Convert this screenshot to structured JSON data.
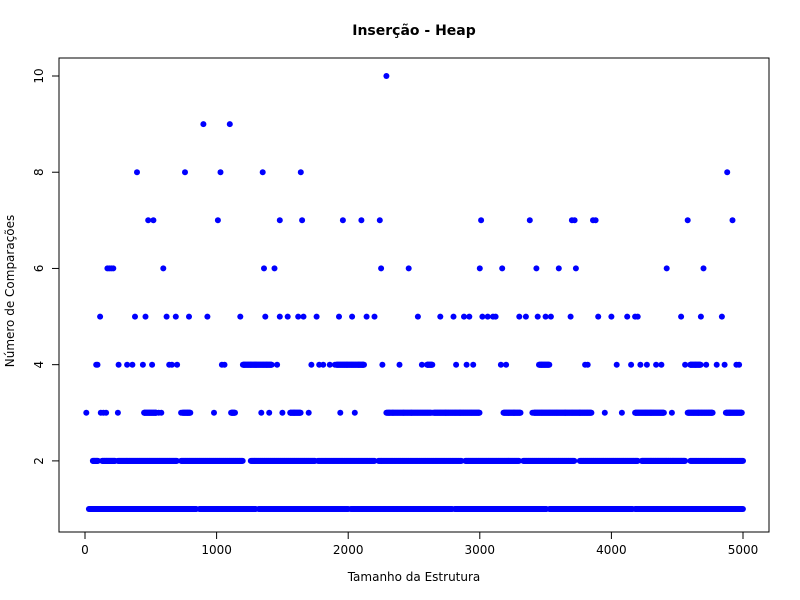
{
  "chart_data": {
    "type": "scatter",
    "title": "Inserção - Heap",
    "xlabel": "Tamanho da Estrutura",
    "ylabel": "Número de Comparações",
    "xlim": [
      0,
      5000
    ],
    "ylim": [
      1,
      10
    ],
    "xticks": [
      0,
      1000,
      2000,
      3000,
      4000,
      5000
    ],
    "yticks": [
      2,
      4,
      6,
      8,
      10
    ],
    "grid": false,
    "point_color": "#0000ff",
    "points": [
      [
        10,
        3
      ],
      [
        60,
        2
      ],
      [
        85,
        4
      ],
      [
        95,
        4
      ],
      [
        115,
        5
      ],
      [
        120,
        3
      ],
      [
        140,
        3
      ],
      [
        160,
        3
      ],
      [
        170,
        6
      ],
      [
        185,
        6
      ],
      [
        200,
        6
      ],
      [
        215,
        6
      ],
      [
        250,
        3
      ],
      [
        255,
        4
      ],
      [
        320,
        4
      ],
      [
        360,
        4
      ],
      [
        380,
        5
      ],
      [
        395,
        8
      ],
      [
        440,
        4
      ],
      [
        450,
        3
      ],
      [
        460,
        5
      ],
      [
        480,
        7
      ],
      [
        520,
        7
      ],
      [
        510,
        4
      ],
      [
        540,
        3
      ],
      [
        560,
        3
      ],
      [
        580,
        3
      ],
      [
        595,
        6
      ],
      [
        620,
        5
      ],
      [
        640,
        4
      ],
      [
        660,
        4
      ],
      [
        690,
        5
      ],
      [
        700,
        4
      ],
      [
        730,
        3
      ],
      [
        760,
        8
      ],
      [
        780,
        3
      ],
      [
        790,
        5
      ],
      [
        900,
        9
      ],
      [
        930,
        5
      ],
      [
        980,
        3
      ],
      [
        1010,
        7
      ],
      [
        1030,
        8
      ],
      [
        1040,
        4
      ],
      [
        1060,
        4
      ],
      [
        1100,
        9
      ],
      [
        1120,
        3
      ],
      [
        1180,
        5
      ],
      [
        1210,
        4
      ],
      [
        1260,
        4
      ],
      [
        1300,
        4
      ],
      [
        1340,
        3
      ],
      [
        1350,
        8
      ],
      [
        1360,
        6
      ],
      [
        1370,
        5
      ],
      [
        1380,
        4
      ],
      [
        1400,
        3
      ],
      [
        1440,
        6
      ],
      [
        1460,
        4
      ],
      [
        1480,
        5
      ],
      [
        1480,
        7
      ],
      [
        1500,
        3
      ],
      [
        1540,
        5
      ],
      [
        1560,
        3
      ],
      [
        1590,
        3
      ],
      [
        1620,
        5
      ],
      [
        1640,
        8
      ],
      [
        1650,
        7
      ],
      [
        1660,
        5
      ],
      [
        1700,
        3
      ],
      [
        1720,
        4
      ],
      [
        1760,
        5
      ],
      [
        1780,
        4
      ],
      [
        1810,
        4
      ],
      [
        1860,
        4
      ],
      [
        1900,
        4
      ],
      [
        1930,
        5
      ],
      [
        1940,
        3
      ],
      [
        1960,
        7
      ],
      [
        1990,
        4
      ],
      [
        2030,
        5
      ],
      [
        2050,
        3
      ],
      [
        2080,
        4
      ],
      [
        2100,
        7
      ],
      [
        2110,
        4
      ],
      [
        2140,
        5
      ],
      [
        2200,
        5
      ],
      [
        2240,
        7
      ],
      [
        2250,
        6
      ],
      [
        2260,
        4
      ],
      [
        2290,
        10
      ],
      [
        2310,
        3
      ],
      [
        2340,
        3
      ],
      [
        2390,
        4
      ],
      [
        2420,
        3
      ],
      [
        2460,
        6
      ],
      [
        2480,
        3
      ],
      [
        2530,
        5
      ],
      [
        2560,
        4
      ],
      [
        2600,
        4
      ],
      [
        2640,
        3
      ],
      [
        2700,
        5
      ],
      [
        2740,
        3
      ],
      [
        2800,
        5
      ],
      [
        2820,
        4
      ],
      [
        2850,
        3
      ],
      [
        2880,
        5
      ],
      [
        2900,
        4
      ],
      [
        2920,
        5
      ],
      [
        2950,
        4
      ],
      [
        3000,
        6
      ],
      [
        3010,
        7
      ],
      [
        3020,
        5
      ],
      [
        3060,
        5
      ],
      [
        3100,
        5
      ],
      [
        3120,
        5
      ],
      [
        3160,
        4
      ],
      [
        3170,
        6
      ],
      [
        3200,
        4
      ],
      [
        3260,
        3
      ],
      [
        3300,
        5
      ],
      [
        3350,
        5
      ],
      [
        3380,
        7
      ],
      [
        3400,
        3
      ],
      [
        3430,
        6
      ],
      [
        3440,
        5
      ],
      [
        3470,
        4
      ],
      [
        3500,
        5
      ],
      [
        3540,
        5
      ],
      [
        3600,
        6
      ],
      [
        3650,
        3
      ],
      [
        3690,
        5
      ],
      [
        3700,
        7
      ],
      [
        3720,
        7
      ],
      [
        3730,
        6
      ],
      [
        3760,
        3
      ],
      [
        3800,
        4
      ],
      [
        3820,
        4
      ],
      [
        3860,
        7
      ],
      [
        3880,
        7
      ],
      [
        3900,
        5
      ],
      [
        3950,
        3
      ],
      [
        4000,
        5
      ],
      [
        4040,
        4
      ],
      [
        4080,
        3
      ],
      [
        4120,
        5
      ],
      [
        4150,
        4
      ],
      [
        4180,
        5
      ],
      [
        4200,
        5
      ],
      [
        4220,
        4
      ],
      [
        4270,
        4
      ],
      [
        4300,
        3
      ],
      [
        4340,
        4
      ],
      [
        4380,
        4
      ],
      [
        4420,
        6
      ],
      [
        4460,
        3
      ],
      [
        4530,
        5
      ],
      [
        4560,
        4
      ],
      [
        4580,
        7
      ],
      [
        4600,
        4
      ],
      [
        4640,
        4
      ],
      [
        4660,
        3
      ],
      [
        4680,
        5
      ],
      [
        4700,
        6
      ],
      [
        4720,
        4
      ],
      [
        4760,
        3
      ],
      [
        4800,
        4
      ],
      [
        4840,
        5
      ],
      [
        4860,
        4
      ],
      [
        4880,
        8
      ],
      [
        4900,
        3
      ],
      [
        4920,
        7
      ],
      [
        4950,
        4
      ],
      [
        4970,
        4
      ],
      [
        4990,
        3
      ]
    ],
    "dense_levels": [
      {
        "y": 1,
        "segments": [
          [
            30,
            850,
            6
          ],
          [
            870,
            1300,
            7
          ],
          [
            1320,
            2000,
            8
          ],
          [
            2020,
            2790,
            7
          ],
          [
            2810,
            3510,
            6
          ],
          [
            3530,
            4160,
            6
          ],
          [
            4180,
            5000,
            7
          ]
        ]
      },
      {
        "y": 2,
        "segments": [
          [
            60,
            100,
            3
          ],
          [
            130,
            230,
            3
          ],
          [
            250,
            700,
            4
          ],
          [
            730,
            1200,
            4
          ],
          [
            1260,
            1750,
            4
          ],
          [
            1770,
            2200,
            5
          ],
          [
            2230,
            2860,
            5
          ],
          [
            2890,
            3300,
            4
          ],
          [
            3330,
            3720,
            4
          ],
          [
            3760,
            4200,
            4
          ],
          [
            4230,
            4560,
            3
          ],
          [
            4600,
            5000,
            5
          ]
        ]
      },
      {
        "y": 3,
        "segments": [
          [
            450,
            540,
            3
          ],
          [
            740,
            800,
            3
          ],
          [
            1110,
            1140,
            3
          ],
          [
            1560,
            1640,
            3
          ],
          [
            2290,
            2630,
            4
          ],
          [
            2650,
            3000,
            3
          ],
          [
            3180,
            3310,
            3
          ],
          [
            3410,
            3850,
            3
          ],
          [
            4180,
            4400,
            3
          ],
          [
            4580,
            4770,
            3
          ],
          [
            4870,
            4990,
            3
          ]
        ]
      },
      {
        "y": 4,
        "segments": [
          [
            1200,
            1420,
            3
          ],
          [
            1910,
            2120,
            3
          ],
          [
            2600,
            2640,
            3
          ],
          [
            3450,
            3530,
            3
          ],
          [
            4600,
            4680,
            3
          ]
        ]
      }
    ]
  }
}
